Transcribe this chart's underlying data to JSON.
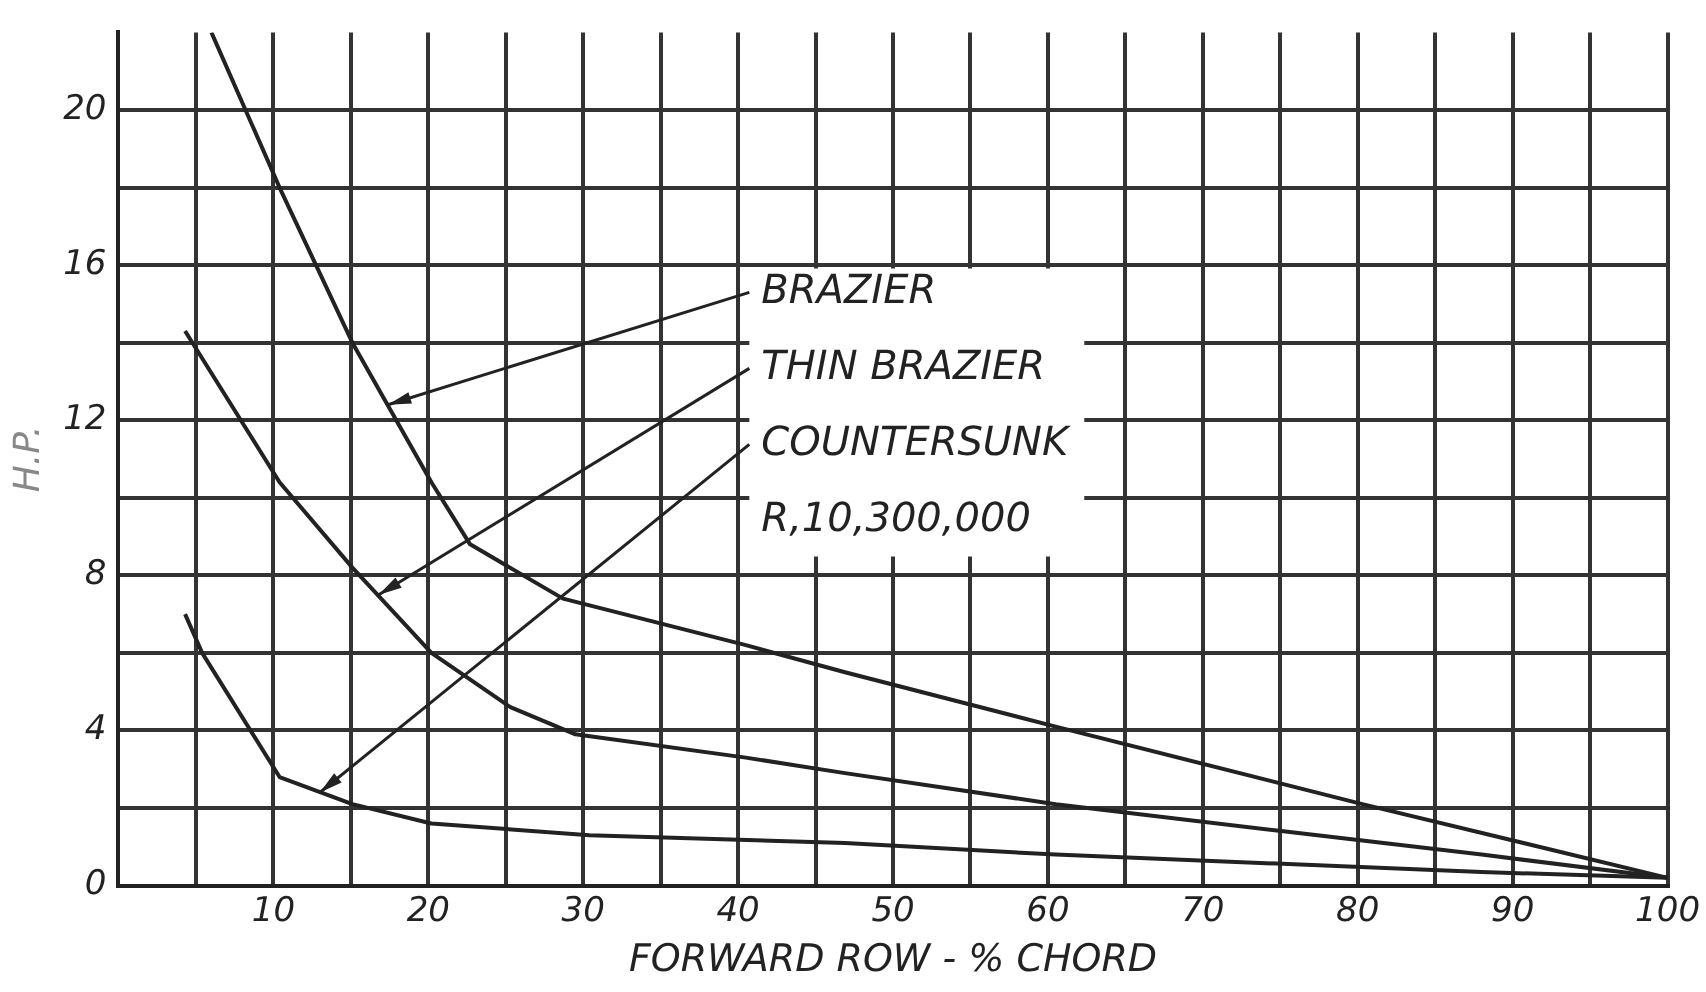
{
  "chart_data": {
    "type": "line",
    "xlabel": "FORWARD ROW - % CHORD",
    "ylabel": "H.P.",
    "xlim": [
      0,
      100
    ],
    "ylim": [
      0,
      22
    ],
    "xticks": [
      {
        "value": 0,
        "label": null
      },
      {
        "value": 5,
        "label": null
      },
      10,
      {
        "value": 15,
        "label": null
      },
      20,
      {
        "value": 25,
        "label": null
      },
      30,
      {
        "value": 35,
        "label": null
      },
      40,
      {
        "value": 45,
        "label": null
      },
      50,
      {
        "value": 55,
        "label": null
      },
      60,
      {
        "value": 65,
        "label": null
      },
      70,
      {
        "value": 75,
        "label": null
      },
      80,
      {
        "value": 85,
        "label": null
      },
      90,
      {
        "value": 95,
        "label": null
      },
      100
    ],
    "yticks": [
      0,
      {
        "value": 2,
        "label": null
      },
      4,
      {
        "value": 6,
        "label": null
      },
      8,
      {
        "value": 10,
        "label": null
      },
      12,
      {
        "value": 14,
        "label": null
      },
      16,
      {
        "value": 18,
        "label": null
      },
      20
    ],
    "grid": true,
    "legend": false,
    "marker": "none",
    "line_style": "solid",
    "series": [
      {
        "color": "#222222",
        "x": [
          6,
          10.4,
          15.1,
          20.2,
          22.7,
          28.7,
          40.5,
          46.9,
          60.5,
          80.3,
          100
        ],
        "values": [
          22,
          18,
          14,
          10.4,
          8.8,
          7.4,
          6.2,
          5.5,
          4.1,
          2.1,
          0.2
        ]
      },
      {
        "color": "#222222",
        "x": [
          4.3,
          10.4,
          15.1,
          20.2,
          25.3,
          29.5,
          40.5,
          46.9,
          60.5,
          75.2,
          88,
          100
        ],
        "values": [
          14.3,
          10.4,
          8.2,
          6,
          4.6,
          3.9,
          3.3,
          2.9,
          2.1,
          1.4,
          0.8,
          0.2
        ]
      },
      {
        "color": "#222222",
        "x": [
          4.3,
          5.4,
          10.4,
          15.1,
          20.2,
          30.4,
          46.9,
          60.5,
          88,
          100
        ],
        "values": [
          7,
          6,
          2.8,
          2.1,
          1.6,
          1.3,
          1.1,
          0.8,
          0.35,
          0.2
        ]
      }
    ],
    "annotations": [
      {
        "text": "BRAZIER",
        "x": 17.4,
        "y": 12.4
      },
      {
        "text": "THIN BRAZIER",
        "x": 16.8,
        "y": 7.5
      },
      {
        "text": "COUNTERSUNK",
        "x": 13,
        "y": 2.4
      },
      "R,10,300,000"
    ]
  }
}
